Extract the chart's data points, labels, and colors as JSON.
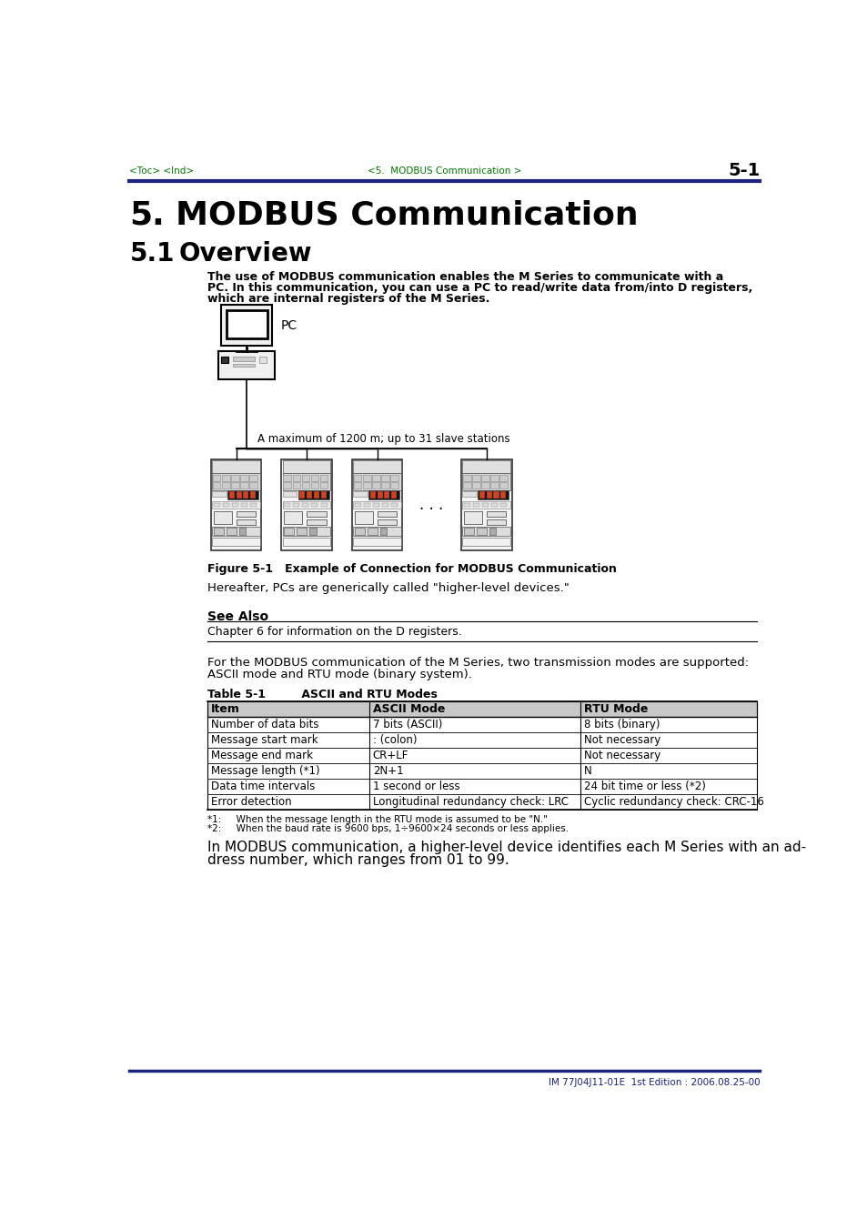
{
  "header_left": "<Toc> <Ind>",
  "header_center": "<5.  MODBUS Communication >",
  "header_right": "5-1",
  "header_color": "#007700",
  "top_line_color": "#1a237e",
  "chapter_number": "5.",
  "chapter_title": "MODBUS Communication",
  "section_number": "5.1",
  "section_title": "Overview",
  "intro_text_1": "The use of MODBUS communication enables the M Series to communicate with a",
  "intro_text_2": "PC. In this communication, you can use a PC to read/write data from/into D registers,",
  "intro_text_3": "which are internal registers of the M Series.",
  "figure_caption": "Figure 5-1   Example of Connection for MODBUS Communication",
  "figure_note": "A maximum of 1200 m; up to 31 slave stations",
  "pc_label": "PC",
  "hereafter_text": "Hereafter, PCs are generically called \"higher-level devices.\"",
  "see_also_title": "See Also",
  "see_also_text": "Chapter 6 for information on the D registers.",
  "transmission_text_1": "For the MODBUS communication of the M Series, two transmission modes are supported:",
  "transmission_text_2": "ASCII mode and RTU mode (binary system).",
  "table_title": "Table 5-1         ASCII and RTU Modes",
  "table_headers": [
    "Item",
    "ASCII Mode",
    "RTU Mode"
  ],
  "table_rows": [
    [
      "Number of data bits",
      "7 bits (ASCII)",
      "8 bits (binary)"
    ],
    [
      "Message start mark",
      ": (colon)",
      "Not necessary"
    ],
    [
      "Message end mark",
      "CR+LF",
      "Not necessary"
    ],
    [
      "Message length (*1)",
      "2N+1",
      "N"
    ],
    [
      "Data time intervals",
      "1 second or less",
      "24 bit time or less (*2)"
    ],
    [
      "Error detection",
      "Longitudinal redundancy check: LRC",
      "Cyclic redundancy check: CRC-16"
    ]
  ],
  "footnote1": "*1:     When the message length in the RTU mode is assumed to be \"N.\"",
  "footnote2": "*2:     When the baud rate is 9600 bps, 1÷9600×24 seconds or less applies.",
  "closing_text_1": "In MODBUS communication, a higher-level device identifies each M Series with an ad-",
  "closing_text_2": "dress number, which ranges from 01 to 99.",
  "footer_text": "IM 77J04J11-01E  1st Edition : 2006.08.25-00",
  "footer_color": "#1a237e",
  "bottom_line_color": "#1a237e",
  "bg_color": "#ffffff",
  "text_color": "#000000"
}
